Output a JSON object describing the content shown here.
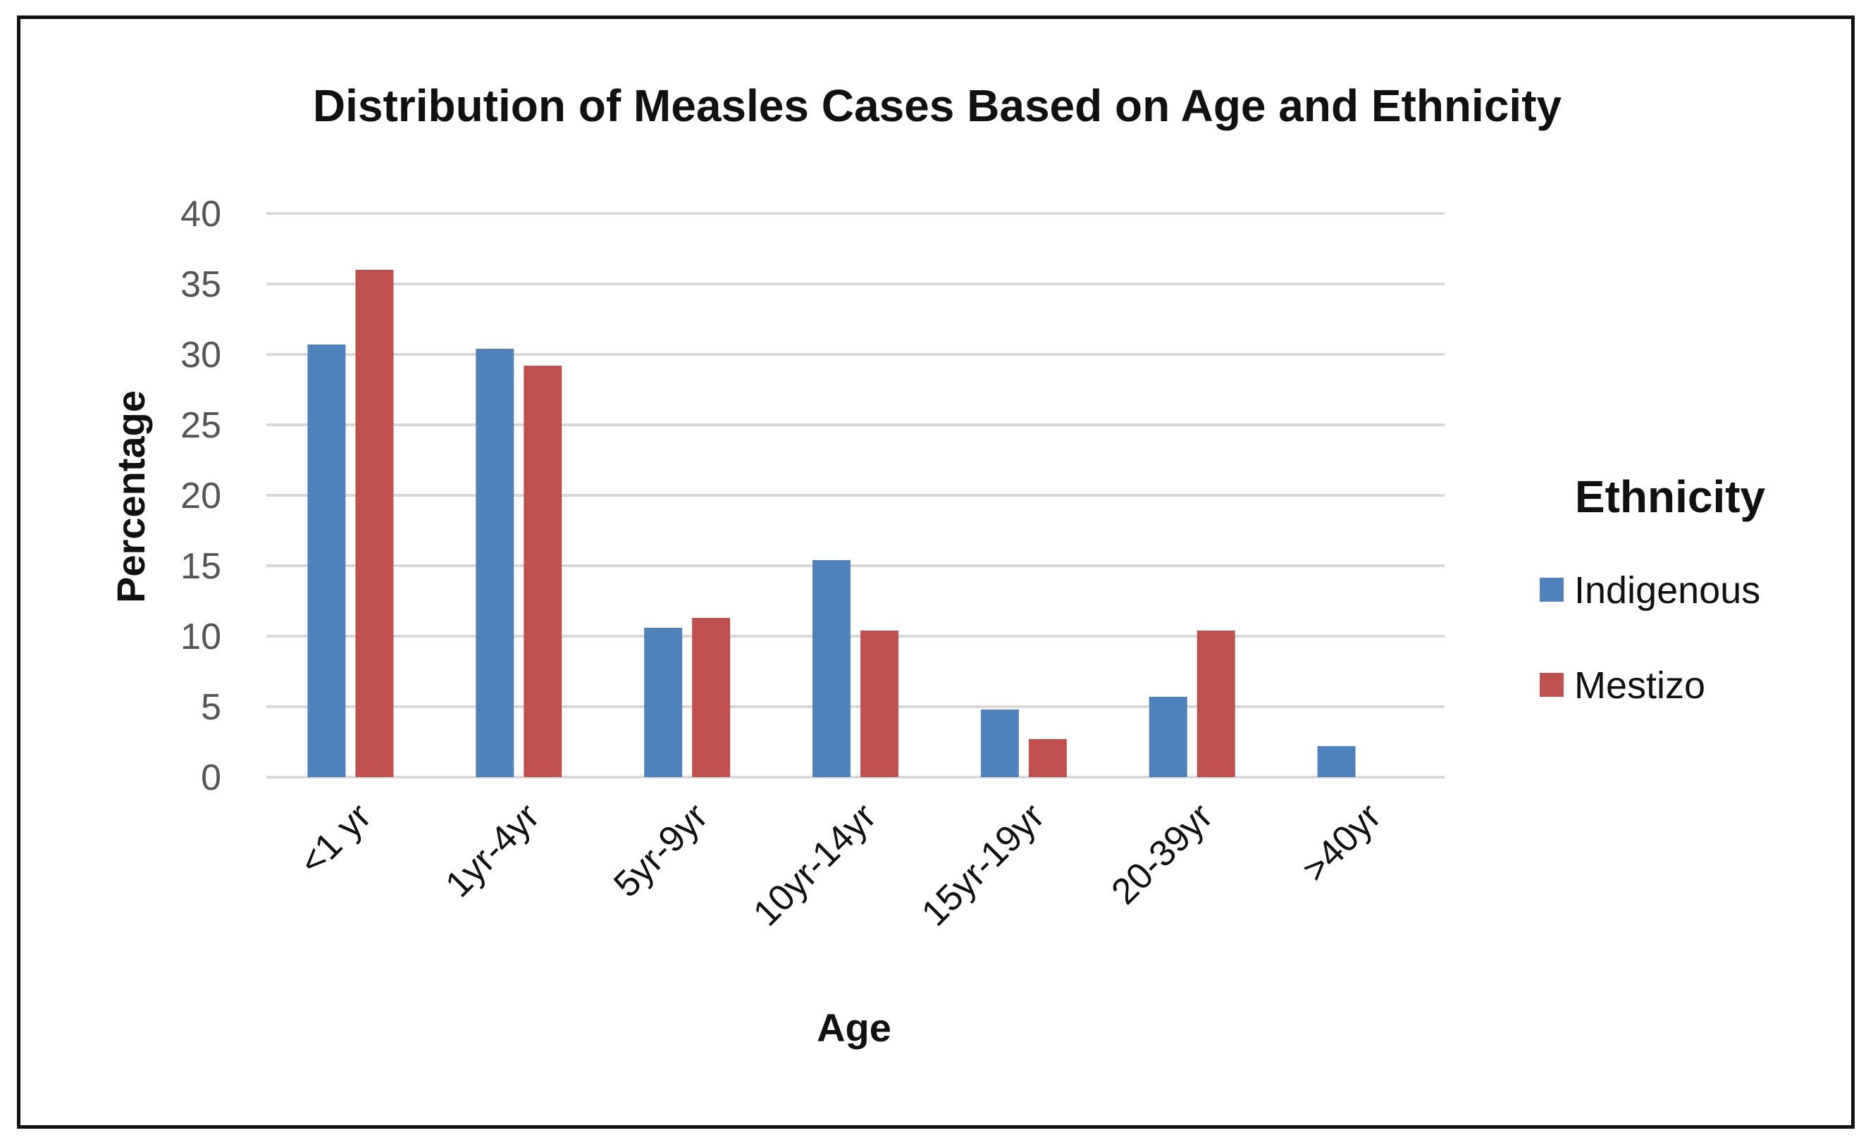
{
  "chart_data": {
    "type": "bar",
    "title": "Distribution of Measles Cases Based on Age and Ethnicity",
    "xlabel": "Age",
    "ylabel": "Percentage",
    "ylim": [
      0,
      40
    ],
    "yticks": [
      "0",
      "5",
      "10",
      "15",
      "20",
      "25",
      "30",
      "35",
      "40"
    ],
    "grid": true,
    "categories": [
      "<1 yr",
      "1yr-4yr",
      "5yr-9yr",
      "10yr-14yr",
      "15yr-19yr",
      "20-39yr",
      ">40yr"
    ],
    "legend_title": "Ethnicity",
    "legend_position": "right",
    "series": [
      {
        "name": "Indigenous",
        "color": "#4F81BD",
        "values": [
          30.7,
          30.4,
          10.6,
          15.4,
          4.8,
          5.7,
          2.2
        ]
      },
      {
        "name": "Mestizo",
        "color": "#C0504D",
        "values": [
          36.0,
          29.2,
          11.3,
          10.4,
          2.7,
          10.4,
          0
        ]
      }
    ]
  }
}
